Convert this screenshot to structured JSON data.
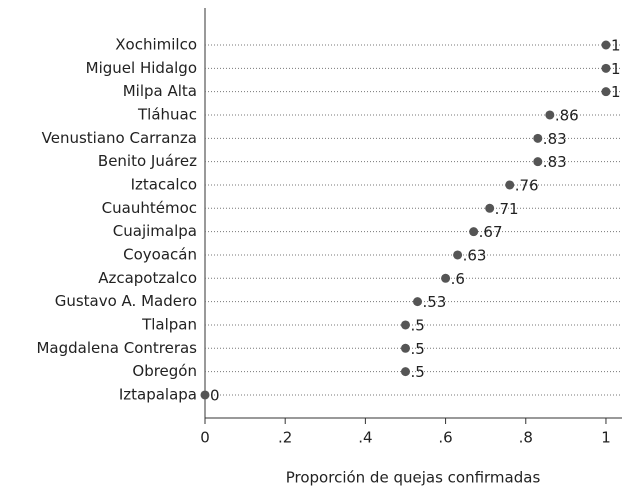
{
  "chart_data": {
    "type": "dot",
    "xlabel": "Proporción de quejas confirmadas",
    "categories": [
      "Xochimilco",
      "Miguel Hidalgo",
      "Milpa Alta",
      "Tláhuac",
      "Venustiano Carranza",
      "Benito Juárez",
      "Iztacalco",
      "Cuauhtémoc",
      "Cuajimalpa",
      "Coyoacán",
      "Azcapotzalco",
      "Gustavo A. Madero",
      "Tlalpan",
      "Magdalena Contreras",
      "Obregón",
      "Iztapalapa"
    ],
    "values": [
      1,
      1,
      1,
      0.86,
      0.83,
      0.83,
      0.76,
      0.71,
      0.67,
      0.63,
      0.6,
      0.53,
      0.5,
      0.5,
      0.5,
      0
    ],
    "value_labels": [
      "1",
      "1",
      "1",
      ".86",
      ".83",
      ".83",
      ".76",
      ".71",
      ".67",
      ".63",
      ".6",
      ".53",
      ".5",
      ".5",
      ".5",
      "0"
    ],
    "color": "#555555",
    "xlim": [
      0,
      1.04
    ],
    "xticks": [
      0,
      {
        "value": 0.2,
        "label": ".2"
      },
      {
        "value": 0.4,
        "label": ".4"
      },
      {
        "value": 0.6,
        "label": ".6"
      },
      {
        "value": 0.8,
        "label": ".8"
      },
      1
    ],
    "grid": true
  }
}
